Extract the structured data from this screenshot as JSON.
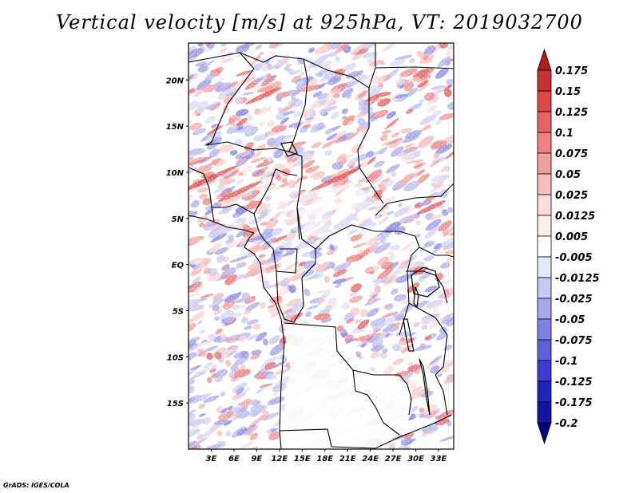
{
  "title": "Vertical velocity [m/s] at 925hPa, VT: 2019032700",
  "credit": "GrADS: IGES/COLA",
  "lat_labels": [
    "20N",
    "15N",
    "10N",
    "5N",
    "EQ",
    "5S",
    "10S",
    "15S"
  ],
  "lon_labels": [
    "3E",
    "6E",
    "9E",
    "12E",
    "15E",
    "18E",
    "21E",
    "24E",
    "27E",
    "30E",
    "33E"
  ],
  "colorbar": {
    "labels": [
      "0.175",
      "0.15",
      "0.125",
      "0.1",
      "0.075",
      "0.05",
      "0.025",
      "0.0125",
      "0.005",
      "-0.005",
      "-0.0125",
      "-0.025",
      "-0.05",
      "-0.075",
      "-0.1",
      "-0.125",
      "-0.175",
      "-0.2"
    ],
    "colors": [
      "#b01c1c",
      "#c83232",
      "#dc4646",
      "#e66464",
      "#ee8282",
      "#f3a0a0",
      "#f8bebe",
      "#fbdcdc",
      "#fdeeee",
      "#ffffff",
      "#e6e6fa",
      "#c8c8f5",
      "#a5a5f0",
      "#8282e6",
      "#5f5fdc",
      "#3c3cd2",
      "#2323be",
      "#1414a0",
      "#000080"
    ]
  },
  "chart_data": {
    "type": "heatmap",
    "title": "Vertical velocity [m/s] at 925hPa, VT: 2019032700",
    "variable": "vertical velocity",
    "units": "m/s",
    "level": "925hPa",
    "valid_time": "2019032700",
    "lon_range": [
      0,
      35
    ],
    "lat_range": [
      -20,
      24
    ],
    "lon_ticks": [
      3,
      6,
      9,
      12,
      15,
      18,
      21,
      24,
      27,
      30,
      33
    ],
    "lat_ticks": [
      20,
      15,
      10,
      5,
      0,
      -5,
      -10,
      -15
    ],
    "levels": [
      -0.2,
      -0.175,
      -0.125,
      -0.1,
      -0.075,
      -0.05,
      -0.025,
      -0.0125,
      -0.005,
      0.005,
      0.0125,
      0.025,
      0.05,
      0.075,
      0.1,
      0.125,
      0.15,
      0.175
    ]
  }
}
